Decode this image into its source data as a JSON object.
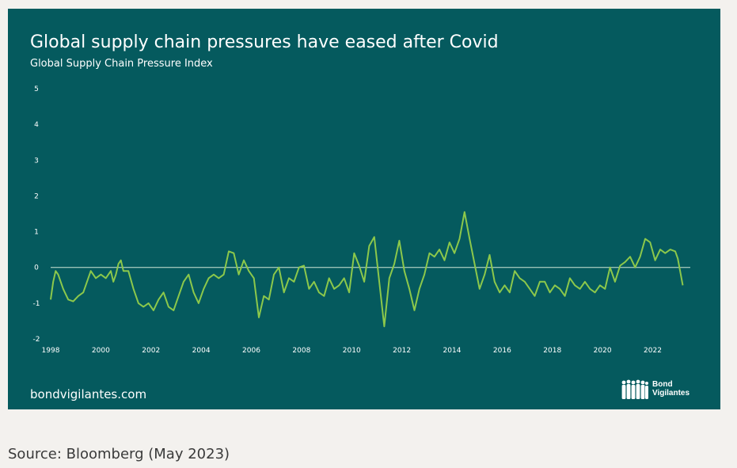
{
  "card": {
    "title": "Global supply chain pressures have eased after Covid",
    "subtitle": "Global Supply Chain Pressure Index",
    "website": "bondvigilantes.com",
    "logo": {
      "line1": "Bond",
      "line2": "Vigilantes",
      "icon": "people-silhouettes-icon"
    }
  },
  "source": "Source: Bloomberg (May 2023)",
  "colors": {
    "card": "#055a5e",
    "line": "#8cc84b",
    "zero_line": "#cfe6d6",
    "page": "#f3f1ee"
  },
  "chart_data": {
    "type": "line",
    "title": "Global supply chain pressures have eased after Covid",
    "subtitle": "Global Supply Chain Pressure Index",
    "xlabel": "",
    "ylabel": "",
    "xlim": [
      1998,
      2023.5
    ],
    "ylim": [
      -2,
      5
    ],
    "x_ticks": [
      "1998",
      "2000",
      "2002",
      "2004",
      "2006",
      "2008",
      "2010",
      "2012",
      "2014",
      "2016",
      "2018",
      "2020",
      "2022"
    ],
    "y_ticks": [
      "5",
      "4",
      "3",
      "2",
      "1",
      "0",
      "-1",
      "-2"
    ],
    "reference_line": 0,
    "grid": false,
    "series": [
      {
        "points": [
          [
            1998.0,
            -0.9
          ],
          [
            1998.1,
            -0.4
          ],
          [
            1998.2,
            -0.1
          ],
          [
            1998.3,
            -0.2
          ],
          [
            1998.5,
            -0.6
          ],
          [
            1998.7,
            -0.9
          ],
          [
            1998.9,
            -0.95
          ],
          [
            1999.1,
            -0.8
          ],
          [
            1999.3,
            -0.7
          ],
          [
            1999.5,
            -0.3
          ],
          [
            1999.6,
            -0.1
          ],
          [
            1999.8,
            -0.3
          ],
          [
            2000.0,
            -0.2
          ],
          [
            2000.2,
            -0.3
          ],
          [
            2000.4,
            -0.1
          ],
          [
            2000.5,
            -0.4
          ],
          [
            2000.6,
            -0.2
          ],
          [
            2000.7,
            0.1
          ],
          [
            2000.8,
            0.2
          ],
          [
            2000.9,
            -0.1
          ],
          [
            2001.1,
            -0.1
          ],
          [
            2001.3,
            -0.6
          ],
          [
            2001.5,
            -1.0
          ],
          [
            2001.7,
            -1.1
          ],
          [
            2001.9,
            -1.0
          ],
          [
            2002.1,
            -1.2
          ],
          [
            2002.3,
            -0.9
          ],
          [
            2002.5,
            -0.7
          ],
          [
            2002.7,
            -1.1
          ],
          [
            2002.9,
            -1.2
          ],
          [
            2003.1,
            -0.8
          ],
          [
            2003.3,
            -0.4
          ],
          [
            2003.5,
            -0.2
          ],
          [
            2003.7,
            -0.7
          ],
          [
            2003.9,
            -1.0
          ],
          [
            2004.1,
            -0.6
          ],
          [
            2004.3,
            -0.3
          ],
          [
            2004.5,
            -0.2
          ],
          [
            2004.7,
            -0.3
          ],
          [
            2004.9,
            -0.2
          ],
          [
            2005.1,
            0.45
          ],
          [
            2005.3,
            0.4
          ],
          [
            2005.5,
            -0.2
          ],
          [
            2005.7,
            0.2
          ],
          [
            2005.9,
            -0.1
          ],
          [
            2006.1,
            -0.3
          ],
          [
            2006.3,
            -1.4
          ],
          [
            2006.5,
            -0.8
          ],
          [
            2006.7,
            -0.9
          ],
          [
            2006.9,
            -0.2
          ],
          [
            2007.1,
            0.0
          ],
          [
            2007.3,
            -0.7
          ],
          [
            2007.5,
            -0.3
          ],
          [
            2007.7,
            -0.4
          ],
          [
            2007.9,
            0.0
          ],
          [
            2008.1,
            0.05
          ],
          [
            2008.3,
            -0.6
          ],
          [
            2008.5,
            -0.4
          ],
          [
            2008.7,
            -0.7
          ],
          [
            2008.9,
            -0.8
          ],
          [
            2009.1,
            -0.3
          ],
          [
            2009.3,
            -0.6
          ],
          [
            2009.5,
            -0.5
          ],
          [
            2009.7,
            -0.3
          ],
          [
            2009.9,
            -0.7
          ],
          [
            2010.1,
            0.4
          ],
          [
            2010.3,
            0.05
          ],
          [
            2010.5,
            -0.4
          ],
          [
            2010.7,
            0.6
          ],
          [
            2010.9,
            0.85
          ],
          [
            2011.1,
            -0.4
          ],
          [
            2011.3,
            -1.65
          ],
          [
            2011.5,
            -0.3
          ],
          [
            2011.7,
            0.1
          ],
          [
            2011.9,
            0.75
          ],
          [
            2012.1,
            -0.1
          ],
          [
            2012.3,
            -0.6
          ],
          [
            2012.5,
            -1.2
          ],
          [
            2012.7,
            -0.6
          ],
          [
            2012.9,
            -0.2
          ],
          [
            2013.1,
            0.4
          ],
          [
            2013.3,
            0.3
          ],
          [
            2013.5,
            0.5
          ],
          [
            2013.7,
            0.2
          ],
          [
            2013.9,
            0.7
          ],
          [
            2014.1,
            0.4
          ],
          [
            2014.3,
            0.8
          ],
          [
            2014.5,
            1.55
          ],
          [
            2014.7,
            0.8
          ],
          [
            2014.9,
            0.1
          ],
          [
            2015.1,
            -0.6
          ],
          [
            2015.3,
            -0.2
          ],
          [
            2015.5,
            0.35
          ],
          [
            2015.7,
            -0.4
          ],
          [
            2015.9,
            -0.7
          ],
          [
            2016.1,
            -0.5
          ],
          [
            2016.3,
            -0.7
          ],
          [
            2016.5,
            -0.1
          ],
          [
            2016.7,
            -0.3
          ],
          [
            2016.9,
            -0.4
          ],
          [
            2017.1,
            -0.6
          ],
          [
            2017.3,
            -0.8
          ],
          [
            2017.5,
            -0.4
          ],
          [
            2017.7,
            -0.4
          ],
          [
            2017.9,
            -0.7
          ],
          [
            2018.1,
            -0.5
          ],
          [
            2018.3,
            -0.6
          ],
          [
            2018.5,
            -0.8
          ],
          [
            2018.7,
            -0.3
          ],
          [
            2018.9,
            -0.5
          ],
          [
            2019.1,
            -0.6
          ],
          [
            2019.3,
            -0.4
          ],
          [
            2019.5,
            -0.6
          ],
          [
            2019.7,
            -0.7
          ],
          [
            2019.9,
            -0.5
          ],
          [
            2020.1,
            -0.6
          ],
          [
            2020.3,
            0.0
          ],
          [
            2020.5,
            -0.4
          ],
          [
            2020.7,
            0.05
          ],
          [
            2020.9,
            0.15
          ],
          [
            2021.1,
            0.3
          ],
          [
            2021.3,
            0.0
          ],
          [
            2021.5,
            0.3
          ],
          [
            2021.7,
            0.8
          ],
          [
            2021.9,
            0.7
          ],
          [
            2022.1,
            0.2
          ],
          [
            2022.3,
            0.5
          ],
          [
            2022.5,
            0.4
          ],
          [
            2022.7,
            0.5
          ],
          [
            2022.9,
            0.45
          ],
          [
            2023.0,
            0.25
          ],
          [
            2023.2,
            -0.5
          ]
        ]
      }
    ]
  }
}
